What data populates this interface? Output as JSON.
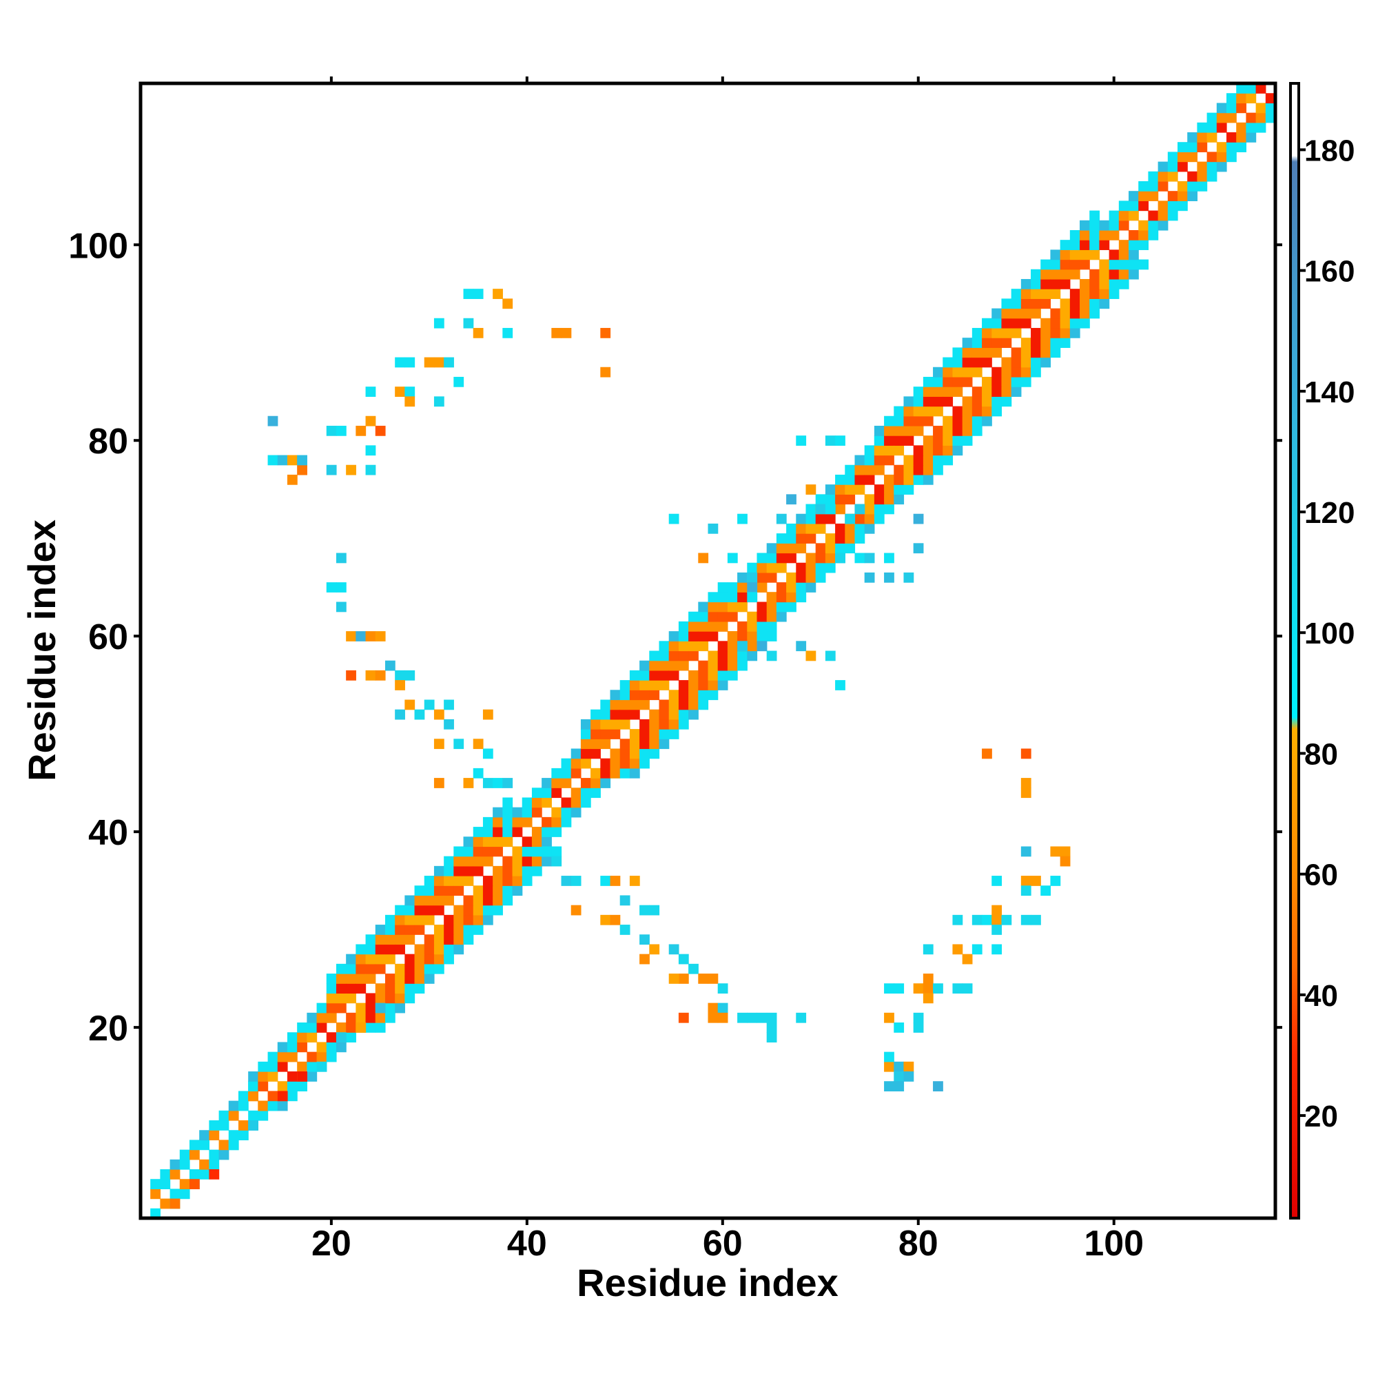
{
  "chart_data": {
    "type": "heatmap",
    "title": "",
    "xlabel": "Residue index",
    "ylabel": "Residue index",
    "xlim": [
      1,
      116
    ],
    "ylim": [
      1,
      116
    ],
    "x_ticks": [
      20,
      40,
      60,
      80,
      100
    ],
    "y_ticks": [
      20,
      40,
      60,
      80,
      100
    ],
    "grid": false,
    "colorbar": {
      "range": [
        3,
        191
      ],
      "ticks": [
        20,
        40,
        60,
        80,
        100,
        120,
        140,
        160,
        180
      ],
      "color_stops": [
        {
          "value": 3,
          "color": "#e00000"
        },
        {
          "value": 30,
          "color": "#ff2a00"
        },
        {
          "value": 45,
          "color": "#ff6a00"
        },
        {
          "value": 60,
          "color": "#ff8c00"
        },
        {
          "value": 84,
          "color": "#ffb000"
        },
        {
          "value": 86,
          "color": "#00f2ff"
        },
        {
          "value": 110,
          "color": "#18d8ec"
        },
        {
          "value": 140,
          "color": "#38b0dc"
        },
        {
          "value": 178,
          "color": "#4f7fb8"
        },
        {
          "value": 179,
          "color": "#ffffff"
        },
        {
          "value": 191,
          "color": "#ffffff"
        }
      ]
    },
    "diagonal_band": {
      "segments": [
        {
          "from": 2,
          "to": 12,
          "width": 2
        },
        {
          "from": 12,
          "to": 20,
          "width": 3
        },
        {
          "from": 20,
          "to": 38,
          "width": 5
        },
        {
          "from": 38,
          "to": 46,
          "width": 3
        },
        {
          "from": 46,
          "to": 60,
          "width": 5
        },
        {
          "from": 60,
          "to": 64,
          "width": 4
        },
        {
          "from": 64,
          "to": 76,
          "width": 4
        },
        {
          "from": 76,
          "to": 98,
          "width": 5
        },
        {
          "from": 98,
          "to": 116,
          "width": 3
        }
      ]
    },
    "off_diagonal_contacts": [
      [
        2,
        1,
        95
      ],
      [
        4,
        2,
        50
      ],
      [
        6,
        4,
        40
      ],
      [
        8,
        5,
        30
      ],
      [
        10,
        8,
        100
      ],
      [
        12,
        10,
        120
      ],
      [
        15,
        13,
        25
      ],
      [
        17,
        15,
        20
      ],
      [
        19,
        16,
        110
      ],
      [
        21,
        19,
        120
      ],
      [
        23,
        20,
        75
      ],
      [
        25,
        22,
        130
      ],
      [
        14,
        82,
        140
      ],
      [
        14,
        78,
        100
      ],
      [
        15,
        78,
        130
      ],
      [
        16,
        78,
        75
      ],
      [
        16,
        76,
        60
      ],
      [
        17,
        77,
        50
      ],
      [
        17,
        78,
        130
      ],
      [
        20,
        81,
        110
      ],
      [
        21,
        81,
        100
      ],
      [
        20,
        77,
        120
      ],
      [
        22,
        77,
        75
      ],
      [
        24,
        77,
        110
      ],
      [
        24,
        79,
        100
      ],
      [
        23,
        81,
        60
      ],
      [
        25,
        81,
        40
      ],
      [
        24,
        82,
        70
      ],
      [
        24,
        85,
        100
      ],
      [
        27,
        85,
        70
      ],
      [
        28,
        85,
        100
      ],
      [
        28,
        84,
        70
      ],
      [
        27,
        88,
        100
      ],
      [
        28,
        88,
        100
      ],
      [
        31,
        84,
        110
      ],
      [
        31,
        88,
        70
      ],
      [
        30,
        88,
        70
      ],
      [
        32,
        88,
        110
      ],
      [
        33,
        86,
        100
      ],
      [
        31,
        92,
        100
      ],
      [
        34,
        95,
        100
      ],
      [
        35,
        95,
        100
      ],
      [
        37,
        95,
        75
      ],
      [
        38,
        94,
        70
      ],
      [
        34,
        92,
        110
      ],
      [
        35,
        91,
        70
      ],
      [
        38,
        91,
        100
      ],
      [
        43,
        91,
        60
      ],
      [
        44,
        91,
        60
      ],
      [
        48,
        91,
        45
      ],
      [
        48,
        87,
        60
      ],
      [
        21,
        68,
        120
      ],
      [
        20,
        65,
        100
      ],
      [
        21,
        65,
        100
      ],
      [
        21,
        63,
        120
      ],
      [
        22,
        60,
        70
      ],
      [
        23,
        60,
        140
      ],
      [
        24,
        60,
        60
      ],
      [
        25,
        60,
        70
      ],
      [
        22,
        56,
        40
      ],
      [
        24,
        56,
        70
      ],
      [
        25,
        56,
        60
      ],
      [
        26,
        57,
        130
      ],
      [
        27,
        56,
        110
      ],
      [
        28,
        56,
        110
      ],
      [
        27,
        55,
        70
      ],
      [
        27,
        52,
        120
      ],
      [
        28,
        53,
        70
      ],
      [
        29,
        52,
        110
      ],
      [
        30,
        53,
        110
      ],
      [
        31,
        52,
        70
      ],
      [
        32,
        53,
        110
      ],
      [
        32,
        51,
        120
      ],
      [
        31,
        49,
        70
      ],
      [
        33,
        49,
        110
      ],
      [
        35,
        49,
        70
      ],
      [
        36,
        48,
        100
      ],
      [
        36,
        52,
        70
      ],
      [
        31,
        45,
        60
      ],
      [
        34,
        45,
        70
      ],
      [
        35,
        46,
        100
      ],
      [
        36,
        45,
        110
      ],
      [
        37,
        45,
        100
      ],
      [
        38,
        45,
        120
      ],
      [
        68,
        80,
        100
      ],
      [
        71,
        80,
        110
      ],
      [
        72,
        80,
        100
      ],
      [
        62,
        72,
        100
      ],
      [
        66,
        72,
        120
      ],
      [
        67,
        74,
        140
      ],
      [
        69,
        75,
        70
      ],
      [
        70,
        73,
        120
      ],
      [
        71,
        73,
        100
      ],
      [
        73,
        72,
        110
      ],
      [
        74,
        73,
        120
      ],
      [
        55,
        72,
        100
      ],
      [
        59,
        71,
        120
      ],
      [
        58,
        68,
        60
      ],
      [
        61,
        68,
        100
      ],
      [
        63,
        66,
        120
      ],
      [
        63,
        65,
        140
      ],
      [
        63,
        64,
        100
      ],
      [
        72,
        68,
        110
      ],
      [
        74,
        68,
        100
      ],
      [
        75,
        68,
        120
      ],
      [
        77,
        68,
        100
      ],
      [
        75,
        66,
        130
      ],
      [
        77,
        66,
        130
      ],
      [
        79,
        66,
        120
      ],
      [
        80,
        72,
        140
      ],
      [
        80,
        69,
        130
      ],
      [
        62,
        59,
        120
      ],
      [
        64,
        59,
        140
      ],
      [
        65,
        58,
        110
      ],
      [
        68,
        59,
        130
      ],
      [
        69,
        58,
        75
      ],
      [
        71,
        58,
        110
      ],
      [
        72,
        55,
        100
      ],
      [
        42,
        38,
        100
      ],
      [
        43,
        37,
        110
      ],
      [
        44,
        35,
        120
      ],
      [
        45,
        35,
        110
      ],
      [
        48,
        35,
        100
      ],
      [
        49,
        35,
        60
      ],
      [
        51,
        35,
        75
      ],
      [
        45,
        32,
        60
      ],
      [
        48,
        31,
        75
      ],
      [
        49,
        31,
        60
      ],
      [
        50,
        33,
        120
      ],
      [
        52,
        32,
        110
      ],
      [
        53,
        32,
        110
      ],
      [
        50,
        30,
        110
      ],
      [
        52,
        29,
        120
      ],
      [
        53,
        28,
        75
      ],
      [
        52,
        27,
        60
      ],
      [
        55,
        28,
        120
      ],
      [
        56,
        27,
        110
      ],
      [
        56,
        25,
        60
      ],
      [
        55,
        25,
        75
      ],
      [
        57,
        26,
        110
      ],
      [
        58,
        25,
        60
      ],
      [
        59,
        25,
        60
      ],
      [
        60,
        24,
        110
      ],
      [
        56,
        21,
        40
      ],
      [
        59,
        22,
        60
      ],
      [
        60,
        22,
        120
      ],
      [
        59,
        21,
        60
      ],
      [
        60,
        21,
        60
      ],
      [
        62,
        21,
        110
      ],
      [
        63,
        21,
        110
      ],
      [
        64,
        21,
        110
      ],
      [
        65,
        21,
        110
      ],
      [
        65,
        20,
        110
      ],
      [
        65,
        19,
        110
      ],
      [
        68,
        21,
        110
      ],
      [
        77,
        16,
        70
      ],
      [
        78,
        16,
        130
      ],
      [
        79,
        16,
        70
      ],
      [
        77,
        17,
        100
      ],
      [
        78,
        15,
        120
      ],
      [
        79,
        15,
        130
      ],
      [
        77,
        14,
        130
      ],
      [
        78,
        14,
        130
      ],
      [
        82,
        14,
        140
      ],
      [
        77,
        21,
        70
      ],
      [
        78,
        20,
        100
      ],
      [
        80,
        21,
        110
      ],
      [
        80,
        20,
        110
      ],
      [
        77,
        24,
        100
      ],
      [
        78,
        24,
        100
      ],
      [
        80,
        24,
        70
      ],
      [
        81,
        25,
        60
      ],
      [
        81,
        24,
        60
      ],
      [
        82,
        24,
        110
      ],
      [
        84,
        24,
        110
      ],
      [
        85,
        24,
        110
      ],
      [
        81,
        23,
        70
      ],
      [
        81,
        28,
        110
      ],
      [
        84,
        28,
        70
      ],
      [
        85,
        27,
        70
      ],
      [
        86,
        28,
        100
      ],
      [
        88,
        28,
        100
      ],
      [
        84,
        31,
        110
      ],
      [
        86,
        31,
        110
      ],
      [
        87,
        31,
        100
      ],
      [
        88,
        31,
        70
      ],
      [
        89,
        31,
        110
      ],
      [
        88,
        30,
        110
      ],
      [
        88,
        32,
        70
      ],
      [
        91,
        31,
        110
      ],
      [
        92,
        31,
        110
      ],
      [
        88,
        35,
        100
      ],
      [
        91,
        35,
        70
      ],
      [
        92,
        35,
        70
      ],
      [
        91,
        34,
        110
      ],
      [
        93,
        34,
        100
      ],
      [
        94,
        35,
        100
      ],
      [
        94,
        38,
        70
      ],
      [
        95,
        38,
        70
      ],
      [
        95,
        37,
        60
      ],
      [
        91,
        38,
        130
      ],
      [
        87,
        48,
        50
      ],
      [
        91,
        48,
        40
      ],
      [
        91,
        45,
        70
      ],
      [
        91,
        44,
        70
      ]
    ]
  }
}
